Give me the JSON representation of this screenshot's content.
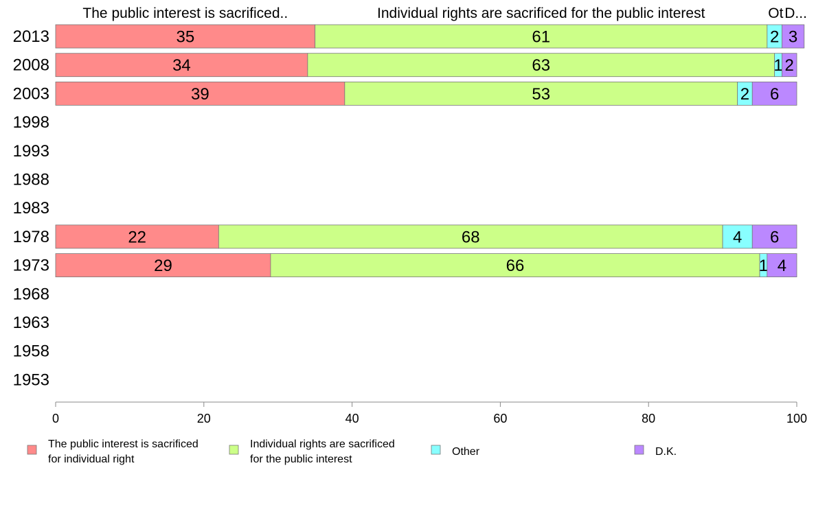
{
  "chart_data": {
    "type": "bar",
    "orientation": "horizontal",
    "stacked": true,
    "categories": [
      "2013",
      "2008",
      "2003",
      "1998",
      "1993",
      "1988",
      "1983",
      "1978",
      "1973",
      "1968",
      "1963",
      "1958",
      "1953"
    ],
    "series": [
      {
        "name": "The public interest is sacrificed for individual right",
        "header": "The public interest is sacrificed..",
        "color": "#ff8a8a",
        "values": [
          35,
          34,
          39,
          null,
          null,
          null,
          null,
          22,
          29,
          null,
          null,
          null,
          null
        ]
      },
      {
        "name": "Individual rights are sacrificed for the public interest",
        "header": "Individual rights are sacrificed for the public interest",
        "color": "#ccff88",
        "values": [
          61,
          63,
          53,
          null,
          null,
          null,
          null,
          68,
          66,
          null,
          null,
          null,
          null
        ]
      },
      {
        "name": "Other",
        "header": "Ot",
        "color": "#88ffff",
        "values": [
          2,
          1,
          2,
          null,
          null,
          null,
          null,
          4,
          1,
          null,
          null,
          null,
          null
        ]
      },
      {
        "name": "D.K.",
        "header": "D...",
        "color": "#bb88ff",
        "values": [
          3,
          2,
          6,
          null,
          null,
          null,
          null,
          6,
          4,
          null,
          null,
          null,
          null
        ]
      }
    ],
    "xlim": [
      0,
      100
    ],
    "xticks": [
      "0",
      "20",
      "40",
      "60",
      "80",
      "100"
    ],
    "legend": {
      "position": "bottom",
      "entries": [
        {
          "lines": [
            "The public interest is sacrificed",
            "for individual right"
          ],
          "color": "#ff8a8a"
        },
        {
          "lines": [
            "Individual rights are sacrificed",
            "for the public interest"
          ],
          "color": "#ccff88"
        },
        {
          "lines": [
            "Other"
          ],
          "color": "#88ffff"
        },
        {
          "lines": [
            "D.K."
          ],
          "color": "#bb88ff"
        }
      ]
    }
  }
}
